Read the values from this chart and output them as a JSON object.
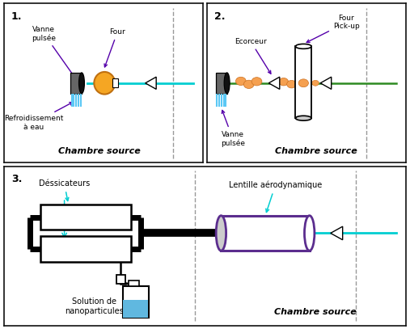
{
  "bg_color": "#ffffff",
  "dark": "#111111",
  "colors": {
    "teal_beam": "#00CED1",
    "orange_oven": "#F5A623",
    "blue_coil": "#5BC8F5",
    "green_beam": "#2E8B22",
    "purple_arrow": "#5500AA",
    "purple_lens": "#5B2D8E",
    "orange_dot": "#F5A050",
    "gray_dash": "#999999",
    "bottle_blue": "#60B8E0"
  },
  "panel1": {
    "label": "1.",
    "chambre": "Chambre source",
    "ann_vanne": "Vanne\npulsée",
    "ann_four": "Four",
    "ann_refroid": "Refroidissement\nà eau"
  },
  "panel2": {
    "label": "2.",
    "chambre": "Chambre source",
    "ann_four_pickup": "Four\nPick-up",
    "ann_ecorceur": "Ecorceur",
    "ann_vanne": "Vanne\npulsée"
  },
  "panel3": {
    "label": "3.",
    "chambre": "Chambre source",
    "ann_dessic": "Déssicateurs",
    "ann_solution": "Solution de\nnanoparticules",
    "ann_lentille": "Lentille aérodynamique"
  }
}
